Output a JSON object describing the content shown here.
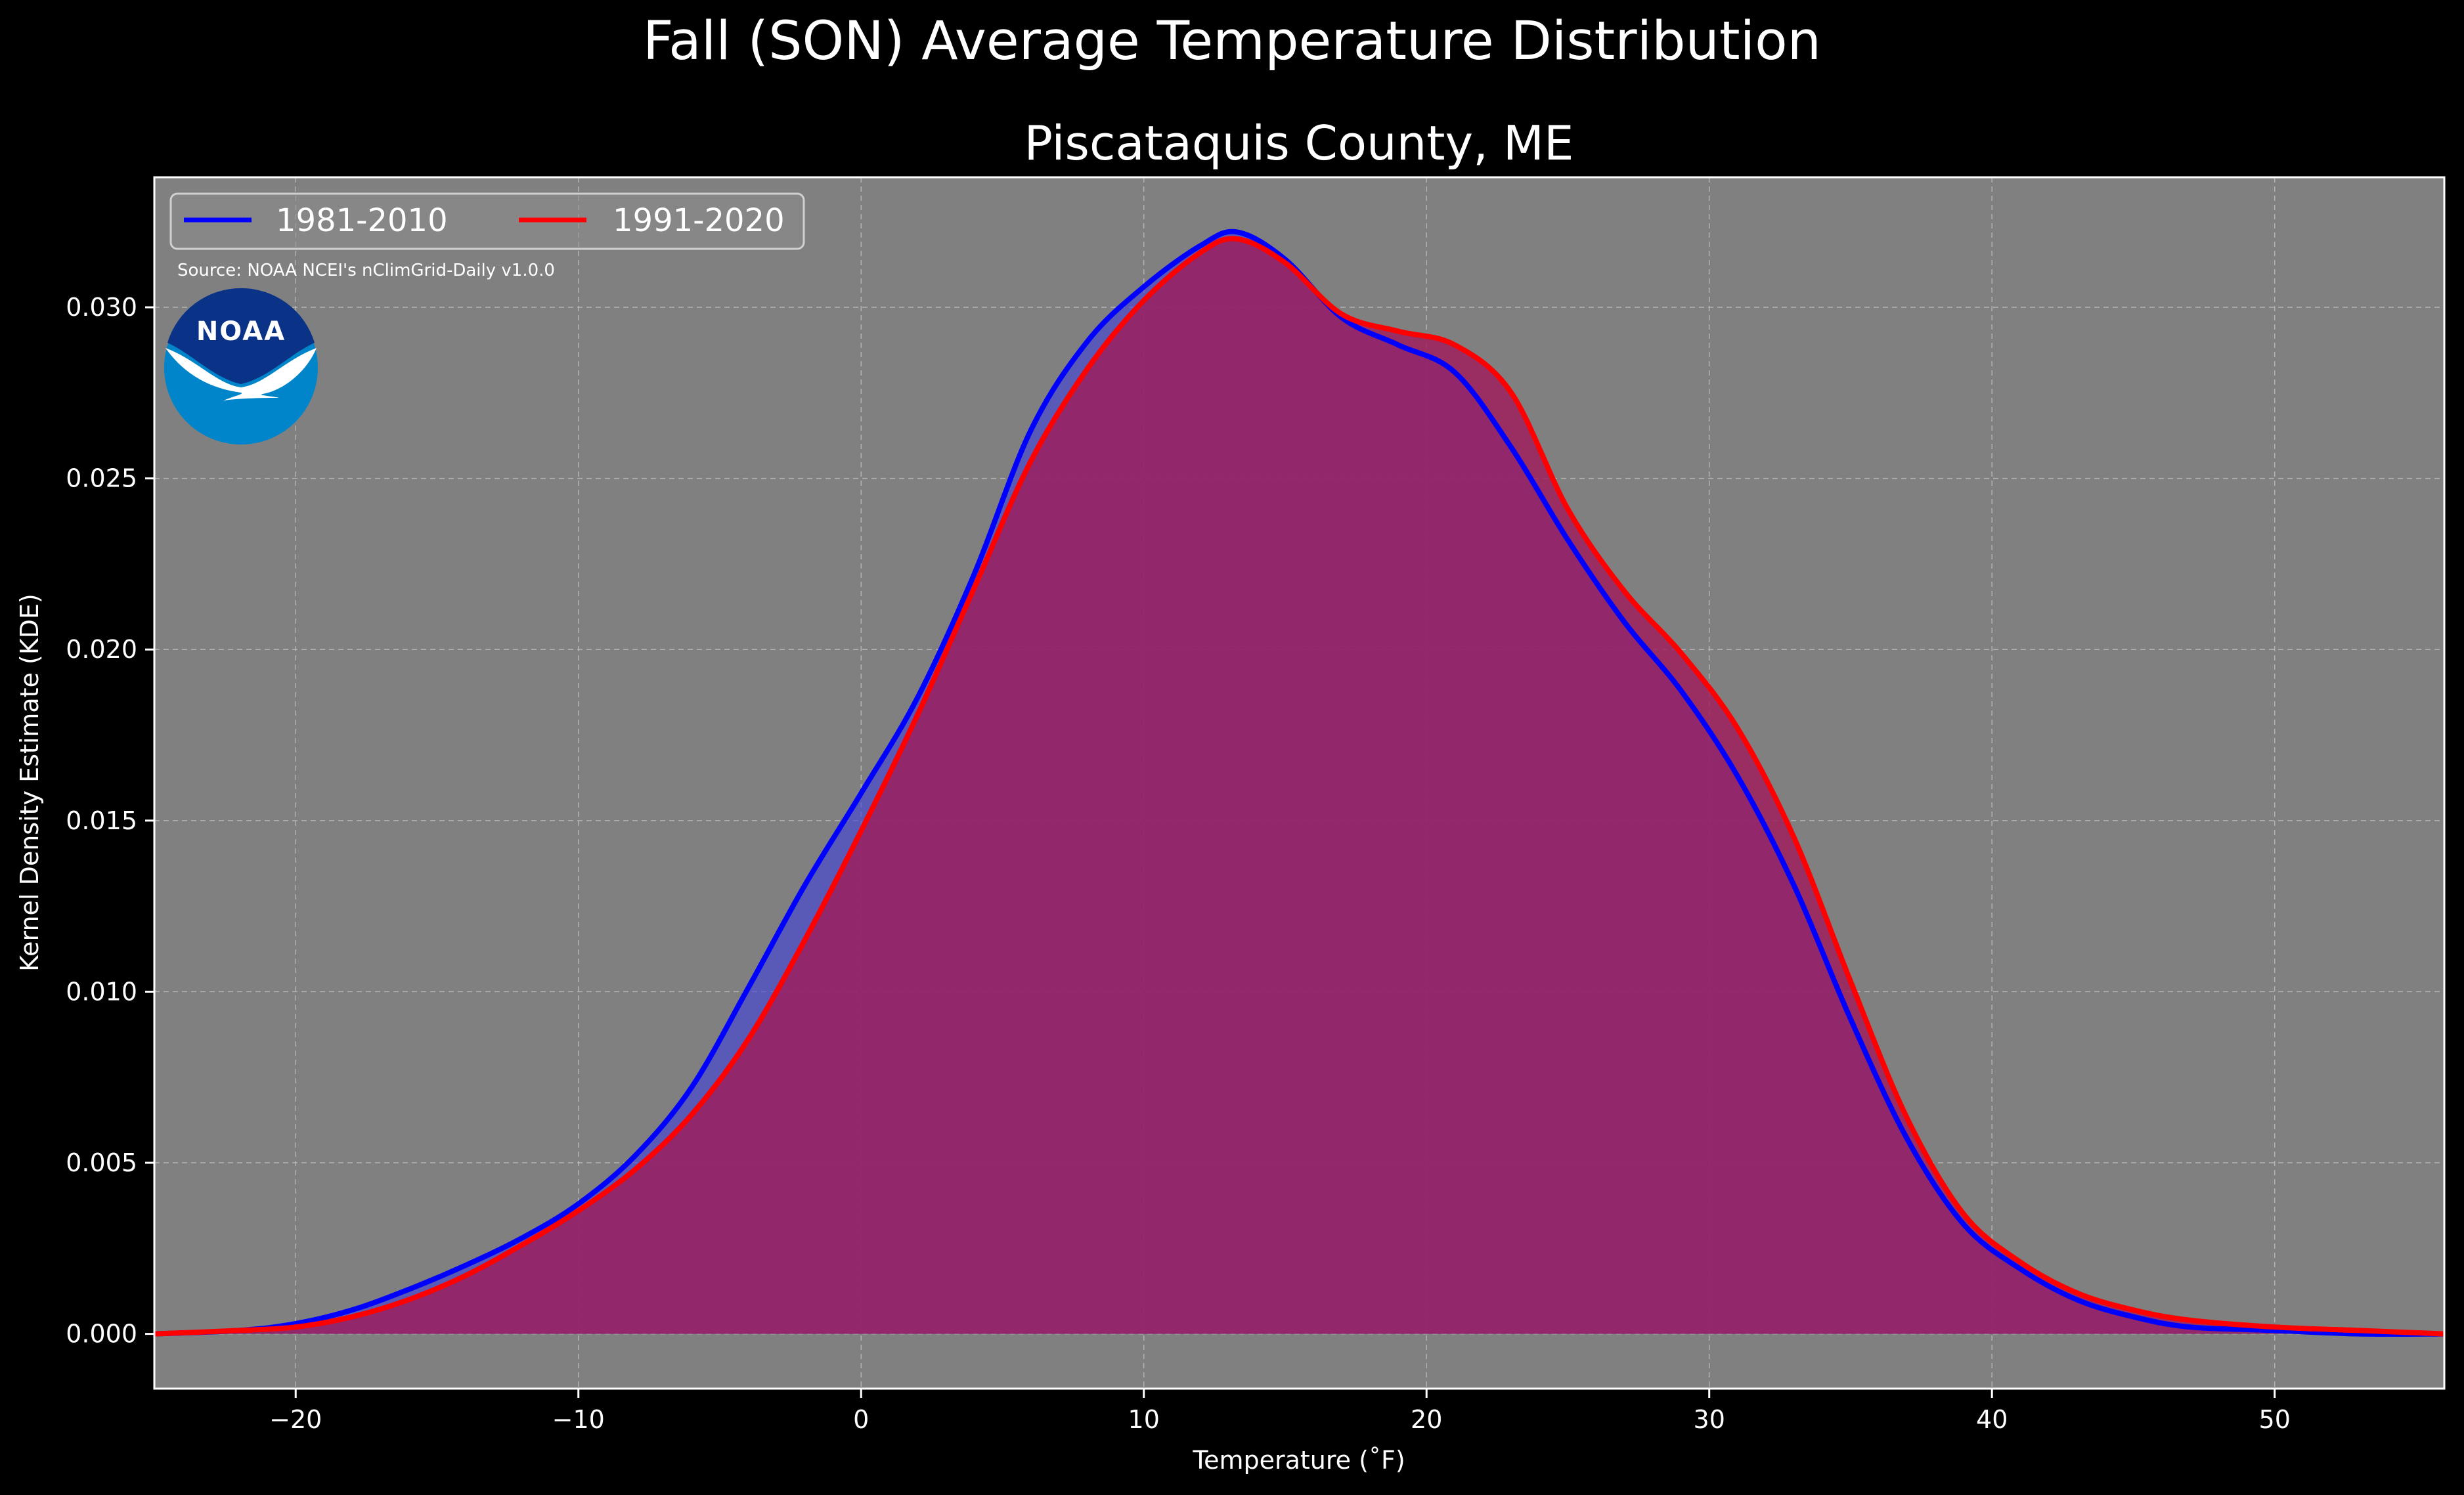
{
  "chart_data": {
    "type": "area",
    "title": "Fall (SON) Average Temperature Distribution",
    "subtitle": "Piscataquis County, ME",
    "xlabel": "Temperature (˚F)",
    "ylabel": "Kernel Density Estimate (KDE)",
    "xlim": [
      -25,
      56
    ],
    "ylim": [
      -0.0016,
      0.0338
    ],
    "xticks": [
      -20,
      -10,
      0,
      10,
      20,
      30,
      40,
      50
    ],
    "xtick_labels": [
      "−20",
      "−10",
      "0",
      "10",
      "20",
      "30",
      "40",
      "50"
    ],
    "yticks": [
      0.0,
      0.005,
      0.01,
      0.015,
      0.02,
      0.025,
      0.03
    ],
    "ytick_labels": [
      "0.000",
      "0.005",
      "0.010",
      "0.015",
      "0.020",
      "0.025",
      "0.030"
    ],
    "grid": true,
    "legend_position": "top-left",
    "annotation": "Source: NOAA NCEI's nClimGrid-Daily v1.0.0",
    "logo_text": "NOAA",
    "colors": {
      "figure_background": "#000000",
      "axes_background": "#808080",
      "series_1": "#0000ff",
      "series_2": "#ff0000",
      "overlap_fill": "#9e1e5e"
    },
    "series": [
      {
        "name": "1981-2010",
        "color": "#0000ff",
        "fill": "#4040d8",
        "x": [
          -25,
          -22,
          -20,
          -18,
          -16,
          -14,
          -12,
          -10,
          -8,
          -6,
          -4,
          -2,
          0,
          2,
          4,
          6,
          8,
          10,
          12,
          13.3,
          15,
          17,
          19,
          21,
          23,
          25,
          27,
          29,
          31,
          33,
          35,
          37,
          39,
          41,
          43,
          45,
          47,
          50,
          53,
          56
        ],
        "y": [
          0.0,
          0.0001,
          0.0003,
          0.0007,
          0.0013,
          0.002,
          0.0028,
          0.0038,
          0.0052,
          0.0072,
          0.0101,
          0.0131,
          0.0158,
          0.0186,
          0.0222,
          0.0264,
          0.029,
          0.0306,
          0.0318,
          0.0322,
          0.0314,
          0.0297,
          0.0289,
          0.0281,
          0.0259,
          0.0232,
          0.0208,
          0.0188,
          0.0163,
          0.0131,
          0.0092,
          0.0057,
          0.0032,
          0.0019,
          0.001,
          0.0005,
          0.0002,
          0.0001,
          0.0,
          0.0
        ]
      },
      {
        "name": "1991-2020",
        "color": "#ff0000",
        "fill": "#a01c5c",
        "x": [
          -25,
          -22,
          -20,
          -18,
          -16,
          -14,
          -12,
          -10,
          -8,
          -6,
          -4,
          -2,
          0,
          2,
          4,
          6,
          8,
          10,
          12,
          13.3,
          15,
          17,
          19,
          21,
          23,
          25,
          27,
          29,
          31,
          33,
          35,
          37,
          39,
          41,
          43,
          45,
          47,
          50,
          53,
          56
        ],
        "y": [
          0.0,
          0.0001,
          0.0002,
          0.0005,
          0.001,
          0.0017,
          0.0026,
          0.0036,
          0.0048,
          0.0064,
          0.0086,
          0.0115,
          0.0147,
          0.0181,
          0.0218,
          0.0255,
          0.0282,
          0.0302,
          0.0316,
          0.032,
          0.0313,
          0.0298,
          0.0293,
          0.0289,
          0.0275,
          0.0241,
          0.0217,
          0.0199,
          0.0177,
          0.0145,
          0.0103,
          0.0063,
          0.0035,
          0.0021,
          0.0012,
          0.0007,
          0.0004,
          0.0002,
          0.0001,
          0.0
        ]
      }
    ]
  }
}
